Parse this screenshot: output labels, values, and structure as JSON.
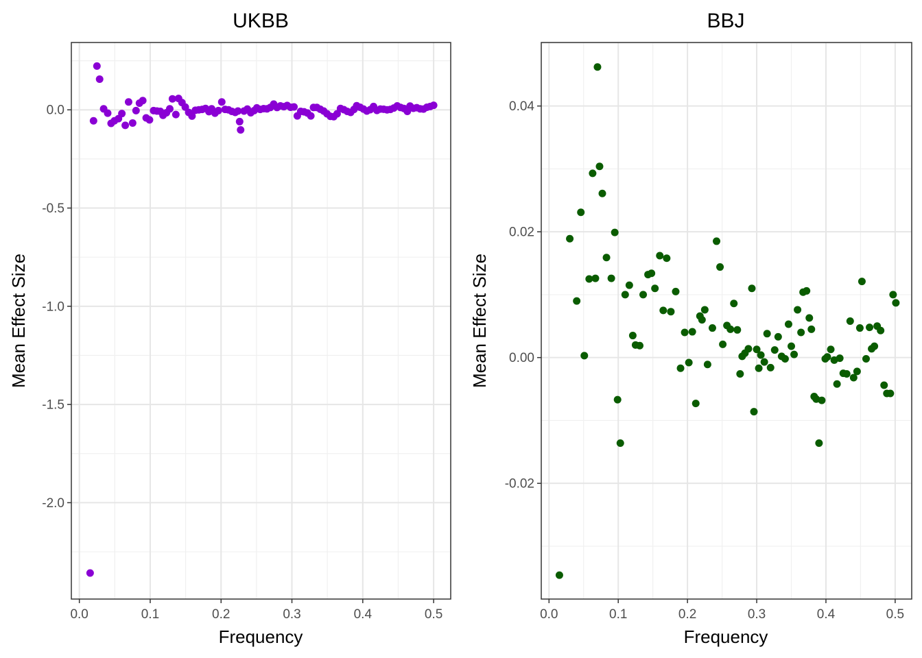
{
  "chart_data": [
    {
      "type": "scatter",
      "title": "UKBB",
      "xlabel": "Frequency",
      "ylabel": "Mean Effect Size",
      "xlim": [
        -0.0113,
        0.5241
      ],
      "ylim": [
        -2.4906,
        0.3428
      ],
      "x_ticks": [
        0.0,
        0.1,
        0.2,
        0.3,
        0.4,
        0.5
      ],
      "x_tick_labels": [
        "0.0",
        "0.1",
        "0.2",
        "0.3",
        "0.4",
        "0.5"
      ],
      "y_ticks": [
        -2.0,
        -1.5,
        -1.0,
        -0.5,
        0.0
      ],
      "y_tick_labels": [
        "-2.0",
        "-1.5",
        "-1.0",
        "-0.5",
        "0.0"
      ],
      "grid": true,
      "point_color": "#8a00d4",
      "points": [
        {
          "x": 0.0152,
          "y": -2.358
        },
        {
          "x": 0.02,
          "y": -0.056
        },
        {
          "x": 0.0248,
          "y": 0.223
        },
        {
          "x": 0.0286,
          "y": 0.156
        },
        {
          "x": 0.0343,
          "y": 0.005
        },
        {
          "x": 0.04,
          "y": -0.017
        },
        {
          "x": 0.0448,
          "y": -0.069
        },
        {
          "x": 0.0495,
          "y": -0.056
        },
        {
          "x": 0.0552,
          "y": -0.045
        },
        {
          "x": 0.06,
          "y": -0.019
        },
        {
          "x": 0.0648,
          "y": -0.079
        },
        {
          "x": 0.0695,
          "y": 0.04
        },
        {
          "x": 0.0752,
          "y": -0.067
        },
        {
          "x": 0.08,
          "y": -0.004
        },
        {
          "x": 0.0848,
          "y": 0.034
        },
        {
          "x": 0.0895,
          "y": 0.047
        },
        {
          "x": 0.0943,
          "y": -0.041
        },
        {
          "x": 0.099,
          "y": -0.051
        },
        {
          "x": 0.1048,
          "y": -0.004
        },
        {
          "x": 0.1095,
          "y": -0.006
        },
        {
          "x": 0.1143,
          "y": -0.008
        },
        {
          "x": 0.1181,
          "y": -0.028
        },
        {
          "x": 0.1229,
          "y": -0.015
        },
        {
          "x": 0.1276,
          "y": 0.005
        },
        {
          "x": 0.1314,
          "y": 0.056
        },
        {
          "x": 0.1362,
          "y": -0.024
        },
        {
          "x": 0.14,
          "y": 0.058
        },
        {
          "x": 0.1448,
          "y": 0.037
        },
        {
          "x": 0.1495,
          "y": 0.014
        },
        {
          "x": 0.1543,
          "y": -0.013
        },
        {
          "x": 0.159,
          "y": -0.032
        },
        {
          "x": 0.1638,
          "y": -0.002
        },
        {
          "x": 0.1686,
          "y": 0.0
        },
        {
          "x": 0.1733,
          "y": 0.002
        },
        {
          "x": 0.1781,
          "y": 0.007
        },
        {
          "x": 0.1829,
          "y": -0.009
        },
        {
          "x": 0.1867,
          "y": 0.005
        },
        {
          "x": 0.1914,
          "y": -0.017
        },
        {
          "x": 0.1962,
          "y": -0.004
        },
        {
          "x": 0.201,
          "y": 0.04
        },
        {
          "x": 0.2057,
          "y": 0.002
        },
        {
          "x": 0.2105,
          "y": 0.0
        },
        {
          "x": 0.2152,
          "y": -0.008
        },
        {
          "x": 0.22,
          "y": -0.013
        },
        {
          "x": 0.2238,
          "y": -0.006
        },
        {
          "x": 0.2262,
          "y": -0.06
        },
        {
          "x": 0.2276,
          "y": -0.102
        },
        {
          "x": 0.2324,
          "y": -0.006
        },
        {
          "x": 0.2371,
          "y": 0.004
        },
        {
          "x": 0.2419,
          "y": -0.015
        },
        {
          "x": 0.2467,
          "y": -0.004
        },
        {
          "x": 0.2505,
          "y": 0.01
        },
        {
          "x": 0.2552,
          "y": 0.002
        },
        {
          "x": 0.26,
          "y": 0.006
        },
        {
          "x": 0.2648,
          "y": 0.005
        },
        {
          "x": 0.2695,
          "y": 0.012
        },
        {
          "x": 0.2743,
          "y": 0.029
        },
        {
          "x": 0.279,
          "y": 0.012
        },
        {
          "x": 0.2838,
          "y": 0.02
        },
        {
          "x": 0.2886,
          "y": 0.016
        },
        {
          "x": 0.2933,
          "y": 0.022
        },
        {
          "x": 0.2981,
          "y": 0.013
        },
        {
          "x": 0.3029,
          "y": 0.015
        },
        {
          "x": 0.3076,
          "y": -0.031
        },
        {
          "x": 0.3124,
          "y": -0.008
        },
        {
          "x": 0.3171,
          "y": -0.01
        },
        {
          "x": 0.3219,
          "y": -0.016
        },
        {
          "x": 0.3267,
          "y": -0.031
        },
        {
          "x": 0.3305,
          "y": 0.012
        },
        {
          "x": 0.3352,
          "y": 0.012
        },
        {
          "x": 0.34,
          "y": 0.003
        },
        {
          "x": 0.3448,
          "y": -0.006
        },
        {
          "x": 0.3495,
          "y": -0.02
        },
        {
          "x": 0.3543,
          "y": -0.033
        },
        {
          "x": 0.359,
          "y": -0.035
        },
        {
          "x": 0.3638,
          "y": -0.02
        },
        {
          "x": 0.3686,
          "y": 0.007
        },
        {
          "x": 0.3733,
          "y": 0.001
        },
        {
          "x": 0.3781,
          "y": -0.008
        },
        {
          "x": 0.3829,
          "y": -0.013
        },
        {
          "x": 0.3876,
          "y": 0.002
        },
        {
          "x": 0.3914,
          "y": 0.021
        },
        {
          "x": 0.3962,
          "y": 0.013
        },
        {
          "x": 0.401,
          "y": 0.004
        },
        {
          "x": 0.4057,
          "y": -0.006
        },
        {
          "x": 0.4105,
          "y": 0.001
        },
        {
          "x": 0.4152,
          "y": 0.017
        },
        {
          "x": 0.42,
          "y": -0.003
        },
        {
          "x": 0.4248,
          "y": 0.004
        },
        {
          "x": 0.4295,
          "y": 0.003
        },
        {
          "x": 0.4343,
          "y": 0.0
        },
        {
          "x": 0.439,
          "y": 0.002
        },
        {
          "x": 0.4438,
          "y": 0.009
        },
        {
          "x": 0.4486,
          "y": 0.02
        },
        {
          "x": 0.4533,
          "y": 0.012
        },
        {
          "x": 0.4581,
          "y": 0.007
        },
        {
          "x": 0.4629,
          "y": -0.008
        },
        {
          "x": 0.4667,
          "y": 0.019
        },
        {
          "x": 0.4714,
          "y": 0.008
        },
        {
          "x": 0.4762,
          "y": 0.011
        },
        {
          "x": 0.481,
          "y": 0.005
        },
        {
          "x": 0.4857,
          "y": 0.004
        },
        {
          "x": 0.4905,
          "y": 0.013
        },
        {
          "x": 0.4952,
          "y": 0.017
        },
        {
          "x": 0.5,
          "y": 0.023
        }
      ]
    },
    {
      "type": "scatter",
      "title": "BBJ",
      "xlabel": "Frequency",
      "ylabel": "Mean Effect Size",
      "xlim": [
        -0.0112,
        0.5239
      ],
      "ylim": [
        -0.0384,
        0.0501
      ],
      "x_ticks": [
        0.0,
        0.1,
        0.2,
        0.3,
        0.4,
        0.5
      ],
      "x_tick_labels": [
        "0.0",
        "0.1",
        "0.2",
        "0.3",
        "0.4",
        "0.5"
      ],
      "y_ticks": [
        -0.02,
        0.0,
        0.02,
        0.04
      ],
      "y_tick_labels": [
        "-0.02",
        "0.00",
        "0.02",
        "0.04"
      ],
      "grid": true,
      "point_color": "#0a5c00",
      "points": [
        {
          "x": 0.015,
          "y": -0.0346
        },
        {
          "x": 0.03,
          "y": 0.0189
        },
        {
          "x": 0.04,
          "y": 0.009
        },
        {
          "x": 0.046,
          "y": 0.0231
        },
        {
          "x": 0.051,
          "y": 0.0003
        },
        {
          "x": 0.058,
          "y": 0.0125
        },
        {
          "x": 0.063,
          "y": 0.0293
        },
        {
          "x": 0.067,
          "y": 0.0126
        },
        {
          "x": 0.07,
          "y": 0.0462
        },
        {
          "x": 0.073,
          "y": 0.0304
        },
        {
          "x": 0.077,
          "y": 0.0261
        },
        {
          "x": 0.083,
          "y": 0.0159
        },
        {
          "x": 0.09,
          "y": 0.0126
        },
        {
          "x": 0.095,
          "y": 0.0199
        },
        {
          "x": 0.099,
          "y": -0.0067
        },
        {
          "x": 0.103,
          "y": -0.0136
        },
        {
          "x": 0.11,
          "y": 0.01
        },
        {
          "x": 0.116,
          "y": 0.0115
        },
        {
          "x": 0.121,
          "y": 0.0035
        },
        {
          "x": 0.125,
          "y": 0.002
        },
        {
          "x": 0.131,
          "y": 0.0019
        },
        {
          "x": 0.136,
          "y": 0.01
        },
        {
          "x": 0.143,
          "y": 0.0132
        },
        {
          "x": 0.148,
          "y": 0.0134
        },
        {
          "x": 0.153,
          "y": 0.011
        },
        {
          "x": 0.16,
          "y": 0.0162
        },
        {
          "x": 0.165,
          "y": 0.0075
        },
        {
          "x": 0.17,
          "y": 0.0158
        },
        {
          "x": 0.176,
          "y": 0.0073
        },
        {
          "x": 0.183,
          "y": 0.0105
        },
        {
          "x": 0.19,
          "y": -0.0017
        },
        {
          "x": 0.196,
          "y": 0.004
        },
        {
          "x": 0.202,
          "y": -0.0008
        },
        {
          "x": 0.207,
          "y": 0.0041
        },
        {
          "x": 0.212,
          "y": -0.0073
        },
        {
          "x": 0.218,
          "y": 0.0066
        },
        {
          "x": 0.221,
          "y": 0.006
        },
        {
          "x": 0.225,
          "y": 0.0076
        },
        {
          "x": 0.229,
          "y": -0.0011
        },
        {
          "x": 0.236,
          "y": 0.0047
        },
        {
          "x": 0.242,
          "y": 0.0185
        },
        {
          "x": 0.247,
          "y": 0.0144
        },
        {
          "x": 0.251,
          "y": 0.0021
        },
        {
          "x": 0.257,
          "y": 0.0051
        },
        {
          "x": 0.262,
          "y": 0.0045
        },
        {
          "x": 0.267,
          "y": 0.0086
        },
        {
          "x": 0.272,
          "y": 0.0044
        },
        {
          "x": 0.276,
          "y": -0.0026
        },
        {
          "x": 0.279,
          "y": 0.0002
        },
        {
          "x": 0.283,
          "y": 0.0007
        },
        {
          "x": 0.288,
          "y": 0.0014
        },
        {
          "x": 0.293,
          "y": 0.011
        },
        {
          "x": 0.296,
          "y": -0.0086
        },
        {
          "x": 0.3,
          "y": 0.0013
        },
        {
          "x": 0.303,
          "y": -0.0017
        },
        {
          "x": 0.306,
          "y": 0.0004
        },
        {
          "x": 0.311,
          "y": -0.0007
        },
        {
          "x": 0.315,
          "y": 0.0038
        },
        {
          "x": 0.32,
          "y": -0.0016
        },
        {
          "x": 0.326,
          "y": 0.0012
        },
        {
          "x": 0.331,
          "y": 0.0033
        },
        {
          "x": 0.336,
          "y": 0.0002
        },
        {
          "x": 0.341,
          "y": -0.0002
        },
        {
          "x": 0.346,
          "y": 0.0053
        },
        {
          "x": 0.35,
          "y": 0.0018
        },
        {
          "x": 0.354,
          "y": 0.0005
        },
        {
          "x": 0.359,
          "y": 0.0076
        },
        {
          "x": 0.364,
          "y": 0.004
        },
        {
          "x": 0.367,
          "y": 0.0104
        },
        {
          "x": 0.372,
          "y": 0.0106
        },
        {
          "x": 0.376,
          "y": 0.0063
        },
        {
          "x": 0.379,
          "y": 0.0045
        },
        {
          "x": 0.383,
          "y": -0.0062
        },
        {
          "x": 0.386,
          "y": -0.0066
        },
        {
          "x": 0.39,
          "y": -0.0136
        },
        {
          "x": 0.394,
          "y": -0.0068
        },
        {
          "x": 0.399,
          "y": -0.0002
        },
        {
          "x": 0.402,
          "y": 0.0001
        },
        {
          "x": 0.407,
          "y": 0.0013
        },
        {
          "x": 0.412,
          "y": -0.0004
        },
        {
          "x": 0.416,
          "y": -0.0042
        },
        {
          "x": 0.42,
          "y": -0.0001
        },
        {
          "x": 0.425,
          "y": -0.0025
        },
        {
          "x": 0.43,
          "y": -0.0026
        },
        {
          "x": 0.435,
          "y": 0.0058
        },
        {
          "x": 0.44,
          "y": -0.0032
        },
        {
          "x": 0.445,
          "y": -0.0022
        },
        {
          "x": 0.449,
          "y": 0.0047
        },
        {
          "x": 0.452,
          "y": 0.0121
        },
        {
          "x": 0.458,
          "y": -0.0002
        },
        {
          "x": 0.463,
          "y": 0.0048
        },
        {
          "x": 0.466,
          "y": 0.0014
        },
        {
          "x": 0.47,
          "y": 0.0018
        },
        {
          "x": 0.474,
          "y": 0.005
        },
        {
          "x": 0.479,
          "y": 0.0043
        },
        {
          "x": 0.484,
          "y": -0.0044
        },
        {
          "x": 0.488,
          "y": -0.0057
        },
        {
          "x": 0.493,
          "y": -0.0057
        },
        {
          "x": 0.497,
          "y": 0.01
        },
        {
          "x": 0.501,
          "y": 0.0087
        }
      ]
    }
  ],
  "colors": {
    "panel_border": "#333333",
    "grid_major": "#e6e6e6",
    "grid_minor": "#f0f0f0",
    "tick_text": "#4d4d4d",
    "text": "#000000"
  }
}
